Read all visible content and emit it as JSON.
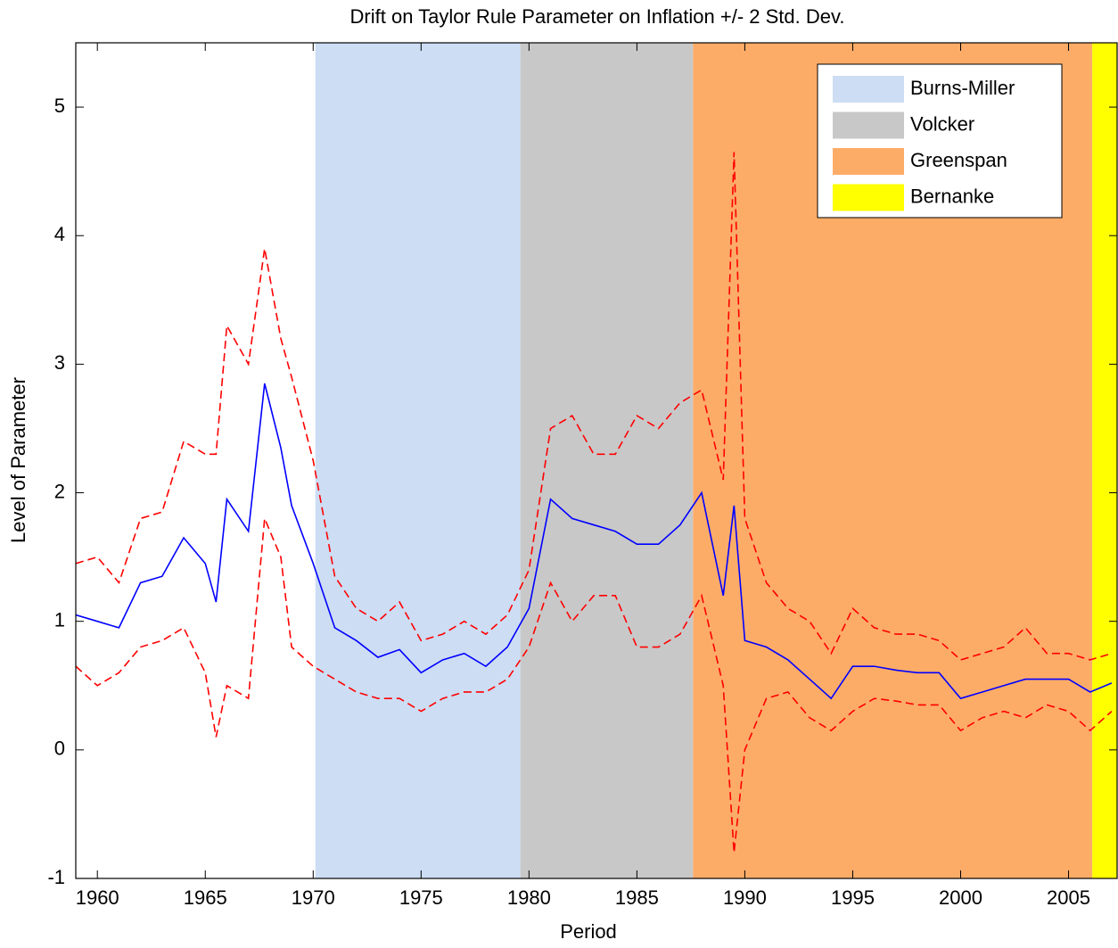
{
  "chart_data": {
    "type": "line",
    "title": "Drift on Taylor Rule Parameter on Inflation +/- 2 Std. Dev.",
    "x_label": "Period",
    "y_label": "Level of Parameter",
    "xlim": [
      1959,
      2007.25
    ],
    "ylim": [
      -1,
      5.5
    ],
    "xticks": [
      1960,
      1965,
      1970,
      1975,
      1980,
      1985,
      1990,
      1995,
      2000,
      2005
    ],
    "yticks": [
      -1,
      0,
      1,
      2,
      3,
      4,
      5
    ],
    "legend_position": "upper right",
    "regions": [
      {
        "name": "Burns-Miller",
        "color": "#ccddf4",
        "start": 1970.1,
        "end": 1979.6
      },
      {
        "name": "Volcker",
        "color": "#c8c8c8",
        "start": 1979.6,
        "end": 1987.6
      },
      {
        "name": "Greenspan",
        "color": "#fdac68",
        "start": 1987.6,
        "end": 2006.1
      },
      {
        "name": "Bernanke",
        "color": "#ffff00",
        "start": 2006.1,
        "end": 2007.25
      }
    ],
    "x": [
      1959,
      1960,
      1961,
      1962,
      1963,
      1964,
      1965,
      1965.5,
      1966,
      1967,
      1967.75,
      1968.5,
      1969,
      1970,
      1971,
      1972,
      1973,
      1974,
      1975,
      1976,
      1977,
      1978,
      1979,
      1980,
      1981,
      1982,
      1983,
      1984,
      1985,
      1986,
      1987,
      1988,
      1989,
      1989.5,
      1990,
      1991,
      1992,
      1993,
      1994,
      1995,
      1996,
      1997,
      1998,
      1999,
      2000,
      2001,
      2002,
      2003,
      2004,
      2005,
      2006,
      2007
    ],
    "series": [
      {
        "color": "#ff0000",
        "dashed": true,
        "values": [
          1.45,
          1.5,
          1.3,
          1.8,
          1.85,
          2.4,
          2.3,
          2.3,
          3.3,
          3.0,
          3.9,
          3.2,
          2.9,
          2.25,
          1.35,
          1.1,
          1.0,
          1.15,
          0.85,
          0.9,
          1.0,
          0.9,
          1.05,
          1.4,
          2.5,
          2.6,
          2.3,
          2.3,
          2.6,
          2.5,
          2.7,
          2.8,
          2.1,
          4.65,
          1.8,
          1.3,
          1.1,
          1.0,
          0.75,
          1.1,
          0.95,
          0.9,
          0.9,
          0.85,
          0.7,
          0.75,
          0.8,
          0.95,
          0.75,
          0.75,
          0.7,
          0.75
        ]
      },
      {
        "color": "#ff0000",
        "dashed": true,
        "values": [
          0.65,
          0.5,
          0.6,
          0.8,
          0.85,
          0.95,
          0.6,
          0.1,
          0.5,
          0.4,
          1.8,
          1.5,
          0.8,
          0.65,
          0.55,
          0.45,
          0.4,
          0.4,
          0.3,
          0.4,
          0.45,
          0.45,
          0.55,
          0.8,
          1.3,
          1.0,
          1.2,
          1.2,
          0.8,
          0.8,
          0.9,
          1.2,
          0.5,
          -0.8,
          0.0,
          0.4,
          0.45,
          0.25,
          0.15,
          0.3,
          0.4,
          0.38,
          0.35,
          0.35,
          0.15,
          0.25,
          0.3,
          0.25,
          0.35,
          0.3,
          0.15,
          0.3
        ]
      },
      {
        "color": "#0000ff",
        "dashed": false,
        "values": [
          1.05,
          1.0,
          0.95,
          1.3,
          1.35,
          1.65,
          1.45,
          1.15,
          1.95,
          1.7,
          2.85,
          2.35,
          1.9,
          1.45,
          0.95,
          0.85,
          0.72,
          0.78,
          0.6,
          0.7,
          0.75,
          0.65,
          0.8,
          1.1,
          1.95,
          1.8,
          1.75,
          1.7,
          1.6,
          1.6,
          1.75,
          2.0,
          1.2,
          1.9,
          0.85,
          0.8,
          0.7,
          0.55,
          0.4,
          0.65,
          0.65,
          0.62,
          0.6,
          0.6,
          0.4,
          0.45,
          0.5,
          0.55,
          0.55,
          0.55,
          0.45,
          0.52
        ]
      }
    ]
  }
}
